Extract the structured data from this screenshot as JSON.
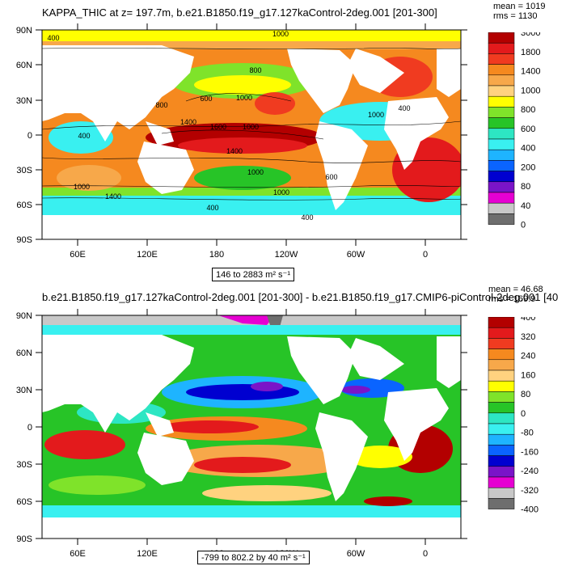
{
  "panel1": {
    "title": "KAPPA_THIC at z= 197.7m, b.e21.B1850.f19_g17.127kaControl-2deg.001 [201-300]",
    "stats": {
      "mean": "mean = 1019",
      "rms": "rms = 1130"
    },
    "range_label": "146 to 2883 m² s⁻¹",
    "colorbar_labels": [
      "3000",
      "1800",
      "1400",
      "1000",
      "800",
      "600",
      "400",
      "200",
      "80",
      "40",
      "0"
    ],
    "colorbar_colors": [
      "#b30000",
      "#e31a1c",
      "#f03b20",
      "#f5891f",
      "#f7a84a",
      "#ffd27f",
      "#ffff00",
      "#7fe32a",
      "#27c427",
      "#2de6c3",
      "#39f0f0",
      "#1eb4ff",
      "#0a64ff",
      "#0000d0",
      "#7a14c8",
      "#e600d2",
      "#c8c8c8",
      "#6e6e6e"
    ]
  },
  "panel2": {
    "title": "b.e21.B1850.f19_g17.127kaControl-2deg.001 [201-300] - b.e21.B1850.f19_g17.CMIP6-piControl-2deg.001 [40",
    "stats": {
      "mean": "mean = 46.68",
      "rms": "rms = 169.9"
    },
    "range_label": "-799 to 802.2 by 40 m² s⁻¹",
    "colorbar_labels": [
      "400",
      "320",
      "240",
      "160",
      "80",
      "0",
      "-80",
      "-160",
      "-240",
      "-320",
      "-400"
    ],
    "colorbar_colors": [
      "#b30000",
      "#e31a1c",
      "#f03b20",
      "#f5891f",
      "#f7a84a",
      "#ffd27f",
      "#ffff00",
      "#7fe32a",
      "#27c427",
      "#2de6c3",
      "#39f0f0",
      "#1eb4ff",
      "#0a64ff",
      "#0000d0",
      "#7a14c8",
      "#e600d2",
      "#c8c8c8",
      "#6e6e6e"
    ]
  },
  "axes": {
    "lat_labels": [
      "90N",
      "60N",
      "30N",
      "0",
      "30S",
      "60S",
      "90S"
    ],
    "lon_labels": [
      "60E",
      "120E",
      "180",
      "120W",
      "60W",
      "0"
    ]
  },
  "contour_labels": [
    "1000",
    "1000",
    "1400",
    "1400",
    "1000",
    "1000",
    "1000",
    "1600",
    "1000",
    "1400",
    "800",
    "800",
    "600",
    "400",
    "400",
    "400",
    "400",
    "400",
    "600",
    "1000"
  ]
}
